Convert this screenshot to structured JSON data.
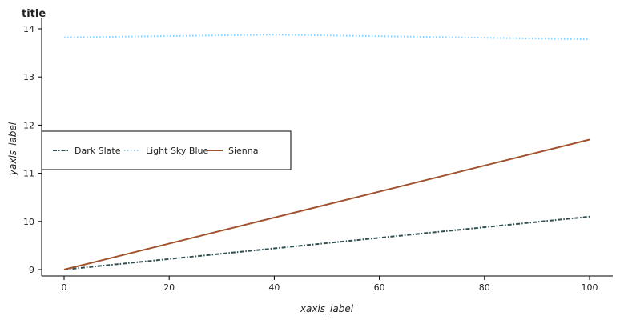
{
  "chart_data": {
    "type": "line",
    "title": "title",
    "xlabel": "xaxis_label",
    "ylabel": "yaxis_label",
    "xlim": [
      0,
      100
    ],
    "ylim": [
      9,
      14
    ],
    "x_ticks": [
      "0",
      "20",
      "40",
      "60",
      "80",
      "100"
    ],
    "y_ticks": [
      "9",
      "10",
      "11",
      "12",
      "13",
      "14"
    ],
    "grid": false,
    "legend_position": "center-left",
    "series": [
      {
        "name": "Dark Slate",
        "color": "#2f4f4f",
        "dash": "dashdot",
        "x": [
          0,
          100
        ],
        "y": [
          9.0,
          10.1
        ]
      },
      {
        "name": "Light Sky Blue",
        "color": "#87cefa",
        "dash": "dotted",
        "x": [
          0,
          40,
          100
        ],
        "y": [
          13.82,
          13.88,
          13.78
        ]
      },
      {
        "name": "Sienna",
        "color": "#a0522d",
        "dash": "solid",
        "x": [
          0,
          100
        ],
        "y": [
          9.0,
          11.7
        ]
      }
    ]
  }
}
